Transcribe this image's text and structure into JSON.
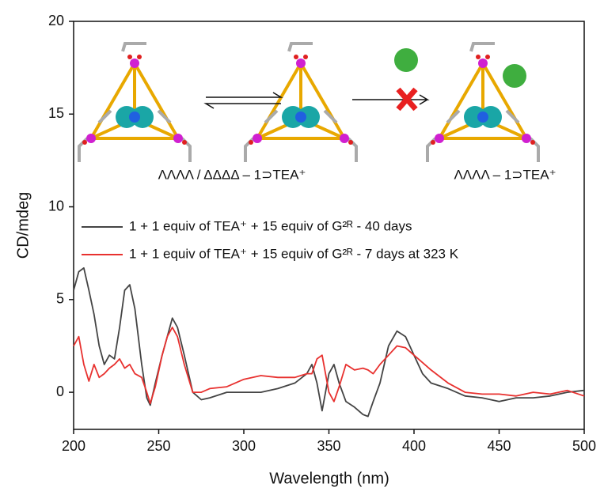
{
  "chart_data": {
    "type": "line",
    "x_label": "Wavelength (nm)",
    "y_label": "CD/mdeg",
    "annotations": [
      "ΛΛΛΛ / ΔΔΔΔ – 1⊃TEA⁺",
      "ΛΛΛΛ – 1⊃TEA⁺"
    ],
    "x": [
      200,
      203,
      206,
      209,
      212,
      215,
      218,
      221,
      224,
      227,
      230,
      233,
      236,
      240,
      243,
      245,
      248,
      252,
      255,
      258,
      261,
      265,
      270,
      275,
      280,
      290,
      300,
      310,
      320,
      330,
      337,
      340,
      343,
      346,
      348,
      350,
      353,
      356,
      360,
      365,
      370,
      373,
      376,
      380,
      385,
      390,
      395,
      400,
      405,
      410,
      420,
      430,
      440,
      450,
      460,
      470,
      480,
      490,
      500
    ],
    "series": [
      {
        "name": "1 + 1 equiv of TEA⁺ + 15 equiv of G²ᴿ - 40 days",
        "color": "#444444",
        "values": [
          5.5,
          6.5,
          6.7,
          5.5,
          4.2,
          2.5,
          1.5,
          2,
          1.8,
          3.5,
          5.5,
          5.8,
          4.5,
          1.5,
          -0.3,
          -0.7,
          0.5,
          2,
          3,
          4,
          3.5,
          2,
          0,
          -0.4,
          -0.3,
          0,
          0,
          0,
          0.2,
          0.5,
          1,
          1.5,
          0.5,
          -1,
          0,
          1,
          1.5,
          0.5,
          -0.5,
          -0.8,
          -1.2,
          -1.3,
          -0.5,
          0.5,
          2.5,
          3.3,
          3,
          2,
          1,
          0.5,
          0.2,
          -0.2,
          -0.3,
          -0.5,
          -0.3,
          -0.3,
          -0.2,
          0,
          0.1
        ]
      },
      {
        "name": "1 + 1 equiv of TEA⁺ + 15 equiv of G²ᴿ - 7 days at 323 K",
        "color": "#e8312f",
        "values": [
          2.5,
          3,
          1.5,
          0.6,
          1.5,
          0.8,
          1,
          1.3,
          1.5,
          1.8,
          1.3,
          1.5,
          1,
          0.8,
          0,
          -0.6,
          0.3,
          2,
          3,
          3.5,
          3,
          1.5,
          0,
          0,
          0.2,
          0.3,
          0.7,
          0.9,
          0.8,
          0.8,
          1,
          1,
          1.8,
          2,
          1,
          0,
          -0.5,
          0.3,
          1.5,
          1.2,
          1.3,
          1.2,
          1,
          1.5,
          2,
          2.5,
          2.4,
          2,
          1.6,
          1.2,
          0.5,
          0,
          -0.1,
          -0.1,
          -0.2,
          0,
          -0.1,
          0.1,
          -0.2
        ]
      }
    ],
    "xlim": [
      200,
      500
    ],
    "xticks": [
      200,
      250,
      300,
      350,
      400,
      450,
      500
    ],
    "ylim": [
      -2,
      20
    ],
    "yticks": [
      0,
      5,
      10,
      15,
      20
    ],
    "grid": false
  }
}
